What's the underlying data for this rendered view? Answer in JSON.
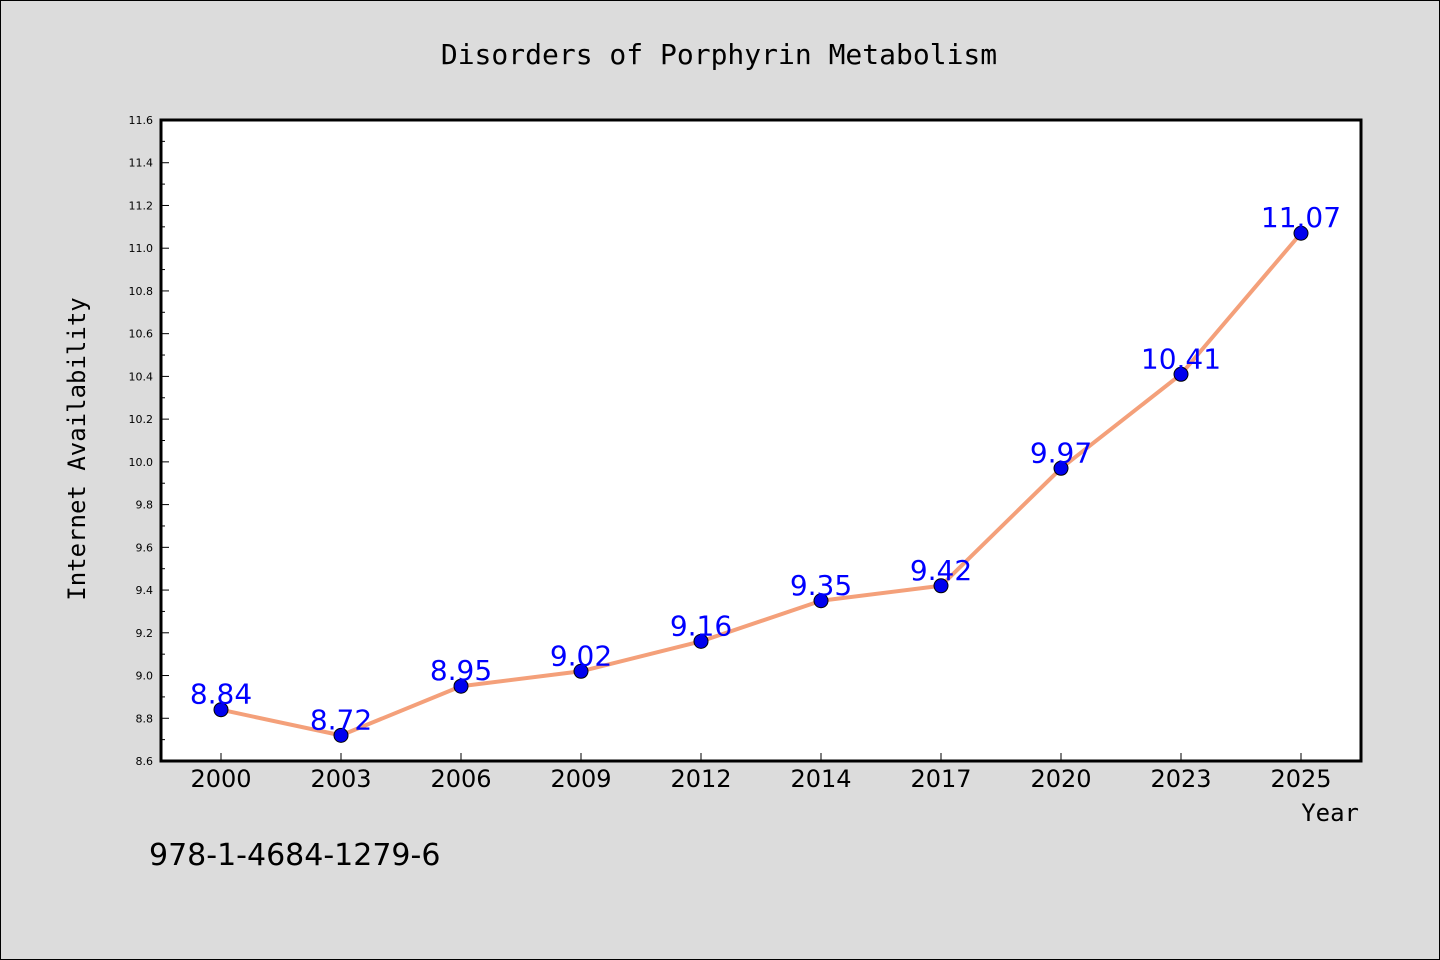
{
  "chart_data": {
    "type": "line",
    "title": "Disorders of Porphyrin Metabolism",
    "xlabel": "Year",
    "ylabel": "Internet Availability",
    "categories": [
      "2000",
      "2003",
      "2006",
      "2009",
      "2012",
      "2014",
      "2017",
      "2020",
      "2023",
      "2025"
    ],
    "series": [
      {
        "values": [
          8.84,
          8.72,
          8.95,
          9.02,
          9.16,
          9.35,
          9.42,
          9.97,
          10.41,
          11.07
        ],
        "data_labels": [
          "8.84",
          "8.72",
          "8.95",
          "9.02",
          "9.16",
          "9.35",
          "9.42",
          "9.97",
          "10.41",
          "11.07"
        ],
        "line_color": "#f4a07a",
        "marker_color": "#0000ee",
        "label_color": "#0000ff"
      }
    ],
    "ylim": [
      8.6,
      11.6
    ],
    "yticks": [
      "8.6",
      "8.8",
      "9.0",
      "9.2",
      "9.4",
      "9.6",
      "9.8",
      "10.0",
      "10.2",
      "10.4",
      "10.6",
      "10.8",
      "11.0",
      "11.2",
      "11.4",
      "11.6"
    ],
    "grid": false,
    "legend": "none"
  },
  "annotation": "978-1-4684-1279-6"
}
